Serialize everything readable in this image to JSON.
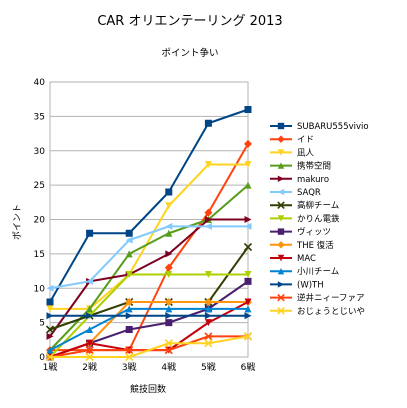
{
  "chart_data": {
    "type": "line",
    "title": "CAR オリエンテーリング 2013",
    "subtitle": "ポイント争い",
    "xlabel": "競技回数",
    "ylabel": "ポイント",
    "categories": [
      "1戦",
      "2戦",
      "3戦",
      "4戦",
      "5戦",
      "6戦"
    ],
    "ylim": [
      0,
      40
    ],
    "yticks": [
      0,
      5,
      10,
      15,
      20,
      25,
      30,
      35,
      40
    ],
    "grid": true,
    "legend_position": "right",
    "series": [
      {
        "name": "SUBARU555vivio",
        "color": "#004586",
        "marker": "square",
        "values": [
          8,
          18,
          18,
          24,
          34,
          36
        ]
      },
      {
        "name": "イド",
        "color": "#ff420e",
        "marker": "diamond",
        "values": [
          1,
          1,
          1,
          13,
          21,
          31
        ]
      },
      {
        "name": "凪人",
        "color": "#ffd320",
        "marker": "triangle-down",
        "values": [
          7,
          7,
          12,
          22,
          28,
          28
        ]
      },
      {
        "name": "携帯空間",
        "color": "#579d1c",
        "marker": "triangle-up",
        "values": [
          1,
          7,
          15,
          18,
          20,
          25
        ]
      },
      {
        "name": "makuro",
        "color": "#7e0021",
        "marker": "triangle-right",
        "values": [
          3,
          11,
          12,
          15,
          20,
          20
        ]
      },
      {
        "name": "SAQR",
        "color": "#83caff",
        "marker": "triangle-left",
        "values": [
          10,
          11,
          17,
          19,
          19,
          19
        ]
      },
      {
        "name": "高柳チーム",
        "color": "#314004",
        "marker": "cross",
        "values": [
          4,
          6,
          8,
          8,
          8,
          16
        ]
      },
      {
        "name": "かりん電鉄",
        "color": "#aecf00",
        "marker": "triangle-down",
        "values": [
          0,
          6,
          12,
          12,
          12,
          12
        ]
      },
      {
        "name": "ヴィッツ",
        "color": "#4b1f6f",
        "marker": "square",
        "values": [
          0,
          2,
          4,
          5,
          7,
          11
        ]
      },
      {
        "name": "THE 復活",
        "color": "#ff950e",
        "marker": "diamond",
        "values": [
          0,
          2,
          8,
          8,
          8,
          8
        ]
      },
      {
        "name": "MAC",
        "color": "#c5000b",
        "marker": "triangle-down",
        "values": [
          0,
          2,
          1,
          1,
          5,
          8
        ]
      },
      {
        "name": "小川チーム",
        "color": "#0084d1",
        "marker": "triangle-up",
        "values": [
          1,
          4,
          7,
          7,
          7,
          7
        ]
      },
      {
        "name": "(W)TH",
        "color": "#004586",
        "marker": "triangle-right",
        "values": [
          6,
          6,
          6,
          6,
          6,
          6
        ]
      },
      {
        "name": "逆井ニィーファア",
        "color": "#ff420e",
        "marker": "cross",
        "values": [
          0,
          1,
          1,
          1,
          3,
          3
        ]
      },
      {
        "name": "おじょうとじいや",
        "color": "#ffd320",
        "marker": "cross",
        "values": [
          0,
          0,
          0,
          2,
          2,
          3
        ]
      }
    ]
  }
}
